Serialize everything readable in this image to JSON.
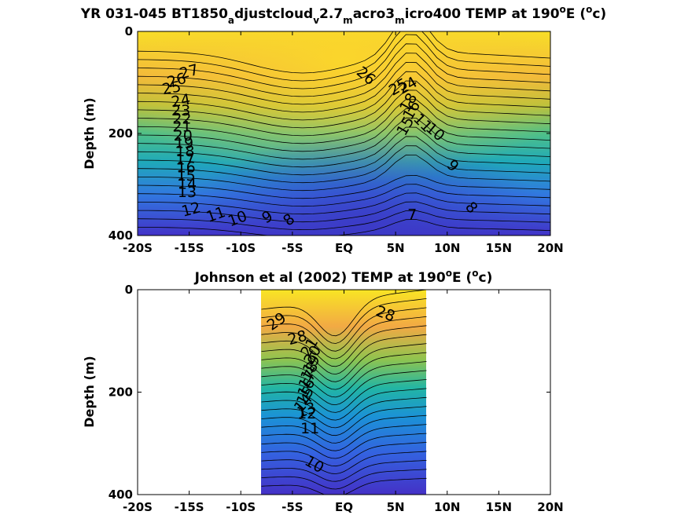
{
  "chart_data": [
    {
      "type": "heatmap",
      "subtype": "filled-contour",
      "title_parts": [
        {
          "text": "YR 031-045 BT1850",
          "shift": "base"
        },
        {
          "text": "a",
          "shift": "sub"
        },
        {
          "text": "djustcloud",
          "shift": "base"
        },
        {
          "text": "v",
          "shift": "sub"
        },
        {
          "text": "2.7",
          "shift": "base"
        },
        {
          "text": "m",
          "shift": "sub"
        },
        {
          "text": "acro3",
          "shift": "base"
        },
        {
          "text": "m",
          "shift": "sub"
        },
        {
          "text": "icro400 TEMP at 190",
          "shift": "base"
        },
        {
          "text": "o",
          "shift": "super"
        },
        {
          "text": "E (",
          "shift": "base"
        },
        {
          "text": "o",
          "shift": "super"
        },
        {
          "text": "c)",
          "shift": "base"
        }
      ],
      "ylabel": "Depth (m)",
      "x_ticks": [
        "-20S",
        "-15S",
        "-10S",
        "-5S",
        "EQ",
        "5N",
        "10N",
        "15N",
        "20N"
      ],
      "y_ticks": [
        "0",
        "200",
        "400"
      ],
      "xlim": [
        -20,
        20
      ],
      "ylim": [
        0,
        400
      ],
      "y_reversed": true,
      "colormap": "parula",
      "data_extent": [
        -20,
        20
      ],
      "contour_labels": [
        {
          "text": "27",
          "lat": -15,
          "depth": 80,
          "rot": -15
        },
        {
          "text": "26",
          "lat": -16.2,
          "depth": 97,
          "rot": -15
        },
        {
          "text": "25",
          "lat": -16.7,
          "depth": 112,
          "rot": -10
        },
        {
          "text": "24",
          "lat": -15.8,
          "depth": 137,
          "rot": -10
        },
        {
          "text": "23",
          "lat": -15.8,
          "depth": 156,
          "rot": 0
        },
        {
          "text": "22",
          "lat": -15.7,
          "depth": 172,
          "rot": 0
        },
        {
          "text": "21",
          "lat": -15.7,
          "depth": 188,
          "rot": 0
        },
        {
          "text": "20",
          "lat": -15.6,
          "depth": 205,
          "rot": 0
        },
        {
          "text": "19",
          "lat": -15.5,
          "depth": 220,
          "rot": 0
        },
        {
          "text": "18",
          "lat": -15.4,
          "depth": 236,
          "rot": 0
        },
        {
          "text": "17",
          "lat": -15.4,
          "depth": 252,
          "rot": 0
        },
        {
          "text": "16",
          "lat": -15.3,
          "depth": 268,
          "rot": 0
        },
        {
          "text": "15",
          "lat": -15.3,
          "depth": 284,
          "rot": 0
        },
        {
          "text": "14",
          "lat": -15.2,
          "depth": 300,
          "rot": 0
        },
        {
          "text": "13",
          "lat": -15.2,
          "depth": 316,
          "rot": 0
        },
        {
          "text": "12",
          "lat": -14.8,
          "depth": 350,
          "rot": -15
        },
        {
          "text": "11",
          "lat": -12.4,
          "depth": 360,
          "rot": -20
        },
        {
          "text": "10",
          "lat": -10.3,
          "depth": 368,
          "rot": -20
        },
        {
          "text": "9",
          "lat": -7.4,
          "depth": 365,
          "rot": -30
        },
        {
          "text": "8",
          "lat": -5.3,
          "depth": 370,
          "rot": -40
        },
        {
          "text": "26",
          "lat": 2.1,
          "depth": 88,
          "rot": 40
        },
        {
          "text": "25",
          "lat": 5.3,
          "depth": 110,
          "rot": -30
        },
        {
          "text": "24",
          "lat": 6.2,
          "depth": 107,
          "rot": -30
        },
        {
          "text": "18",
          "lat": 6.3,
          "depth": 140,
          "rot": -60
        },
        {
          "text": "16",
          "lat": 6.6,
          "depth": 155,
          "rot": -60
        },
        {
          "text": "15",
          "lat": 6.0,
          "depth": 186,
          "rot": -60
        },
        {
          "text": "11",
          "lat": 7.6,
          "depth": 180,
          "rot": 45
        },
        {
          "text": "10",
          "lat": 8.8,
          "depth": 198,
          "rot": 40
        },
        {
          "text": "9",
          "lat": 10.5,
          "depth": 264,
          "rot": 45
        },
        {
          "text": "8",
          "lat": 12.3,
          "depth": 346,
          "rot": 50
        },
        {
          "text": "7",
          "lat": 6.6,
          "depth": 360,
          "rot": 0
        }
      ]
    },
    {
      "type": "heatmap",
      "subtype": "filled-contour",
      "title_parts": [
        {
          "text": "Johnson et al (2002) TEMP at 190",
          "shift": "base"
        },
        {
          "text": "o",
          "shift": "super"
        },
        {
          "text": "E (",
          "shift": "base"
        },
        {
          "text": "o",
          "shift": "super"
        },
        {
          "text": "c)",
          "shift": "base"
        }
      ],
      "ylabel": "Depth (m)",
      "x_ticks": [
        "-20S",
        "-15S",
        "-10S",
        "-5S",
        "EQ",
        "5N",
        "10N",
        "15N",
        "20N"
      ],
      "y_ticks": [
        "0",
        "200",
        "400"
      ],
      "xlim": [
        -20,
        20
      ],
      "ylim": [
        0,
        400
      ],
      "y_reversed": true,
      "colormap": "parula",
      "data_extent": [
        -8,
        8
      ],
      "contour_labels": [
        {
          "text": "29",
          "lat": -6.5,
          "depth": 63,
          "rot": -35
        },
        {
          "text": "28",
          "lat": -4.5,
          "depth": 95,
          "rot": -15
        },
        {
          "text": "28",
          "lat": 4.0,
          "depth": 48,
          "rot": 20
        },
        {
          "text": "21",
          "lat": -3.3,
          "depth": 113,
          "rot": -60
        },
        {
          "text": "20",
          "lat": -3.0,
          "depth": 128,
          "rot": -60
        },
        {
          "text": "19",
          "lat": -3.1,
          "depth": 146,
          "rot": -60
        },
        {
          "text": "18",
          "lat": -3.3,
          "depth": 160,
          "rot": -60
        },
        {
          "text": "17",
          "lat": -3.5,
          "depth": 176,
          "rot": -60
        },
        {
          "text": "16",
          "lat": -3.6,
          "depth": 192,
          "rot": -60
        },
        {
          "text": "15",
          "lat": -3.7,
          "depth": 208,
          "rot": -60
        },
        {
          "text": "14",
          "lat": -3.9,
          "depth": 222,
          "rot": -50
        },
        {
          "text": "13",
          "lat": -3.6,
          "depth": 236,
          "rot": -20
        },
        {
          "text": "12",
          "lat": -3.6,
          "depth": 243,
          "rot": 0
        },
        {
          "text": "11",
          "lat": -3.3,
          "depth": 272,
          "rot": 0
        },
        {
          "text": "10",
          "lat": -2.9,
          "depth": 342,
          "rot": 30
        }
      ]
    }
  ]
}
